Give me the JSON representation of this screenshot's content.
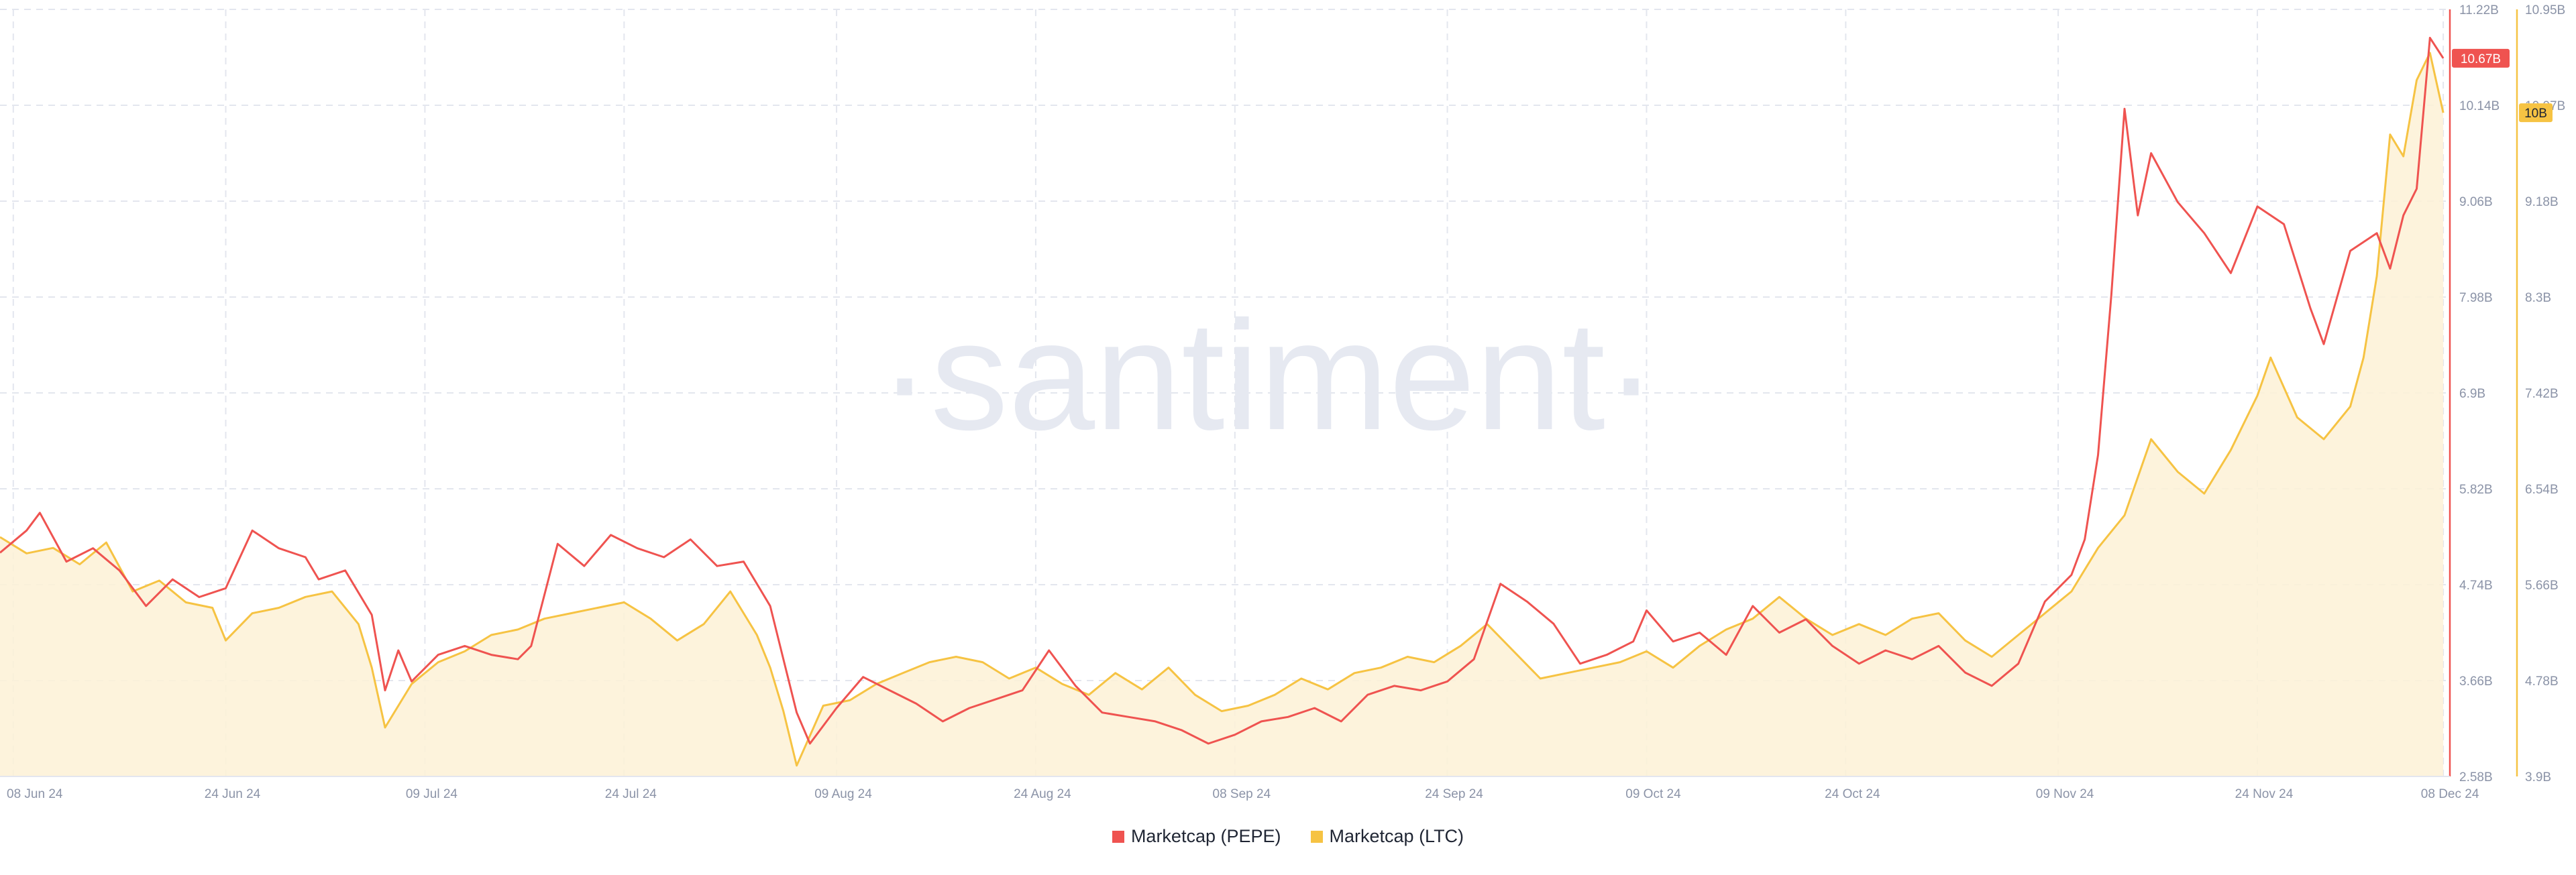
{
  "watermark": "·santiment·",
  "chart_data": {
    "type": "line",
    "x_axis": {
      "range": [
        "07 Jun 24",
        "08 Dec 24"
      ],
      "tick_labels": [
        "08 Jun 24",
        "24 Jun 24",
        "09 Jul 24",
        "24 Jul 24",
        "09 Aug 24",
        "24 Aug 24",
        "08 Sep 24",
        "24 Sep 24",
        "09 Oct 24",
        "24 Oct 24",
        "09 Nov 24",
        "24 Nov 24",
        "08 Dec 24"
      ]
    },
    "y_axis_left": {
      "series": "Marketcap (PEPE)",
      "range": [
        2.58,
        11.22
      ],
      "unit": "B",
      "tick_labels": [
        "11.22B",
        "10.14B",
        "9.06B",
        "7.98B",
        "6.9B",
        "5.82B",
        "4.74B",
        "3.66B",
        "2.58B"
      ],
      "current_value_label": "10.67B",
      "color": "#ef5350"
    },
    "y_axis_right": {
      "series": "Marketcap (LTC)",
      "range": [
        3.9,
        10.95
      ],
      "unit": "B",
      "tick_labels": [
        "10.95B",
        "10.07B",
        "9.18B",
        "8.3B",
        "7.42B",
        "6.54B",
        "5.66B",
        "4.78B",
        "3.9B"
      ],
      "current_value_label": "10B",
      "color": "#f6c343"
    },
    "grid": true,
    "legend_position": "bottom-center",
    "series": [
      {
        "name": "Marketcap (PEPE)",
        "color": "#ef5350",
        "axis": "left",
        "points": [
          [
            "2024-06-07",
            5.1
          ],
          [
            "2024-06-09",
            5.35
          ],
          [
            "2024-06-10",
            5.55
          ],
          [
            "2024-06-12",
            5.0
          ],
          [
            "2024-06-14",
            5.15
          ],
          [
            "2024-06-16",
            4.9
          ],
          [
            "2024-06-18",
            4.5
          ],
          [
            "2024-06-20",
            4.8
          ],
          [
            "2024-06-22",
            4.6
          ],
          [
            "2024-06-24",
            4.7
          ],
          [
            "2024-06-26",
            5.35
          ],
          [
            "2024-06-28",
            5.15
          ],
          [
            "2024-06-30",
            5.05
          ],
          [
            "2024-07-01",
            4.8
          ],
          [
            "2024-07-03",
            4.9
          ],
          [
            "2024-07-05",
            4.4
          ],
          [
            "2024-07-06",
            3.55
          ],
          [
            "2024-07-07",
            4.0
          ],
          [
            "2024-07-08",
            3.65
          ],
          [
            "2024-07-10",
            3.95
          ],
          [
            "2024-07-12",
            4.05
          ],
          [
            "2024-07-14",
            3.95
          ],
          [
            "2024-07-16",
            3.9
          ],
          [
            "2024-07-17",
            4.05
          ],
          [
            "2024-07-19",
            5.2
          ],
          [
            "2024-07-21",
            4.95
          ],
          [
            "2024-07-23",
            5.3
          ],
          [
            "2024-07-25",
            5.15
          ],
          [
            "2024-07-27",
            5.05
          ],
          [
            "2024-07-29",
            5.25
          ],
          [
            "2024-07-31",
            4.95
          ],
          [
            "2024-08-02",
            5.0
          ],
          [
            "2024-08-04",
            4.5
          ],
          [
            "2024-08-05",
            3.9
          ],
          [
            "2024-08-06",
            3.3
          ],
          [
            "2024-08-07",
            2.95
          ],
          [
            "2024-08-09",
            3.35
          ],
          [
            "2024-08-11",
            3.7
          ],
          [
            "2024-08-13",
            3.55
          ],
          [
            "2024-08-15",
            3.4
          ],
          [
            "2024-08-17",
            3.2
          ],
          [
            "2024-08-19",
            3.35
          ],
          [
            "2024-08-21",
            3.45
          ],
          [
            "2024-08-23",
            3.55
          ],
          [
            "2024-08-25",
            4.0
          ],
          [
            "2024-08-27",
            3.6
          ],
          [
            "2024-08-29",
            3.3
          ],
          [
            "2024-08-31",
            3.25
          ],
          [
            "2024-09-02",
            3.2
          ],
          [
            "2024-09-04",
            3.1
          ],
          [
            "2024-09-06",
            2.95
          ],
          [
            "2024-09-08",
            3.05
          ],
          [
            "2024-09-10",
            3.2
          ],
          [
            "2024-09-12",
            3.25
          ],
          [
            "2024-09-14",
            3.35
          ],
          [
            "2024-09-16",
            3.2
          ],
          [
            "2024-09-18",
            3.5
          ],
          [
            "2024-09-20",
            3.6
          ],
          [
            "2024-09-22",
            3.55
          ],
          [
            "2024-09-24",
            3.65
          ],
          [
            "2024-09-26",
            3.9
          ],
          [
            "2024-09-28",
            4.75
          ],
          [
            "2024-09-30",
            4.55
          ],
          [
            "2024-10-02",
            4.3
          ],
          [
            "2024-10-04",
            3.85
          ],
          [
            "2024-10-06",
            3.95
          ],
          [
            "2024-10-08",
            4.1
          ],
          [
            "2024-10-09",
            4.45
          ],
          [
            "2024-10-11",
            4.1
          ],
          [
            "2024-10-13",
            4.2
          ],
          [
            "2024-10-15",
            3.95
          ],
          [
            "2024-10-17",
            4.5
          ],
          [
            "2024-10-19",
            4.2
          ],
          [
            "2024-10-21",
            4.35
          ],
          [
            "2024-10-23",
            4.05
          ],
          [
            "2024-10-25",
            3.85
          ],
          [
            "2024-10-27",
            4.0
          ],
          [
            "2024-10-29",
            3.9
          ],
          [
            "2024-10-31",
            4.05
          ],
          [
            "2024-11-02",
            3.75
          ],
          [
            "2024-11-04",
            3.6
          ],
          [
            "2024-11-06",
            3.85
          ],
          [
            "2024-11-08",
            4.55
          ],
          [
            "2024-11-10",
            4.85
          ],
          [
            "2024-11-11",
            5.25
          ],
          [
            "2024-11-12",
            6.2
          ],
          [
            "2024-11-13",
            8.0
          ],
          [
            "2024-11-14",
            10.1
          ],
          [
            "2024-11-15",
            8.9
          ],
          [
            "2024-11-16",
            9.6
          ],
          [
            "2024-11-18",
            9.05
          ],
          [
            "2024-11-20",
            8.7
          ],
          [
            "2024-11-22",
            8.25
          ],
          [
            "2024-11-24",
            9.0
          ],
          [
            "2024-11-26",
            8.8
          ],
          [
            "2024-11-28",
            7.85
          ],
          [
            "2024-11-29",
            7.45
          ],
          [
            "2024-12-01",
            8.5
          ],
          [
            "2024-12-03",
            8.7
          ],
          [
            "2024-12-04",
            8.3
          ],
          [
            "2024-12-05",
            8.9
          ],
          [
            "2024-12-06",
            9.2
          ],
          [
            "2024-12-07",
            10.9
          ],
          [
            "2024-12-08",
            10.67
          ]
        ]
      },
      {
        "name": "Marketcap (LTC)",
        "color": "#f6c343",
        "axis": "right",
        "points": [
          [
            "2024-06-07",
            6.1
          ],
          [
            "2024-06-09",
            5.95
          ],
          [
            "2024-06-11",
            6.0
          ],
          [
            "2024-06-13",
            5.85
          ],
          [
            "2024-06-15",
            6.05
          ],
          [
            "2024-06-17",
            5.6
          ],
          [
            "2024-06-19",
            5.7
          ],
          [
            "2024-06-21",
            5.5
          ],
          [
            "2024-06-23",
            5.45
          ],
          [
            "2024-06-24",
            5.15
          ],
          [
            "2024-06-26",
            5.4
          ],
          [
            "2024-06-28",
            5.45
          ],
          [
            "2024-06-30",
            5.55
          ],
          [
            "2024-07-02",
            5.6
          ],
          [
            "2024-07-04",
            5.3
          ],
          [
            "2024-07-05",
            4.9
          ],
          [
            "2024-07-06",
            4.35
          ],
          [
            "2024-07-08",
            4.75
          ],
          [
            "2024-07-10",
            4.95
          ],
          [
            "2024-07-12",
            5.05
          ],
          [
            "2024-07-14",
            5.2
          ],
          [
            "2024-07-16",
            5.25
          ],
          [
            "2024-07-18",
            5.35
          ],
          [
            "2024-07-20",
            5.4
          ],
          [
            "2024-07-22",
            5.45
          ],
          [
            "2024-07-24",
            5.5
          ],
          [
            "2024-07-26",
            5.35
          ],
          [
            "2024-07-28",
            5.15
          ],
          [
            "2024-07-30",
            5.3
          ],
          [
            "2024-08-01",
            5.6
          ],
          [
            "2024-08-03",
            5.2
          ],
          [
            "2024-08-04",
            4.9
          ],
          [
            "2024-08-05",
            4.5
          ],
          [
            "2024-08-06",
            4.0
          ],
          [
            "2024-08-08",
            4.55
          ],
          [
            "2024-08-10",
            4.6
          ],
          [
            "2024-08-12",
            4.75
          ],
          [
            "2024-08-14",
            4.85
          ],
          [
            "2024-08-16",
            4.95
          ],
          [
            "2024-08-18",
            5.0
          ],
          [
            "2024-08-20",
            4.95
          ],
          [
            "2024-08-22",
            4.8
          ],
          [
            "2024-08-24",
            4.9
          ],
          [
            "2024-08-26",
            4.75
          ],
          [
            "2024-08-28",
            4.65
          ],
          [
            "2024-08-30",
            4.85
          ],
          [
            "2024-09-01",
            4.7
          ],
          [
            "2024-09-03",
            4.9
          ],
          [
            "2024-09-05",
            4.65
          ],
          [
            "2024-09-07",
            4.5
          ],
          [
            "2024-09-09",
            4.55
          ],
          [
            "2024-09-11",
            4.65
          ],
          [
            "2024-09-13",
            4.8
          ],
          [
            "2024-09-15",
            4.7
          ],
          [
            "2024-09-17",
            4.85
          ],
          [
            "2024-09-19",
            4.9
          ],
          [
            "2024-09-21",
            5.0
          ],
          [
            "2024-09-23",
            4.95
          ],
          [
            "2024-09-25",
            5.1
          ],
          [
            "2024-09-27",
            5.3
          ],
          [
            "2024-09-29",
            5.05
          ],
          [
            "2024-10-01",
            4.8
          ],
          [
            "2024-10-03",
            4.85
          ],
          [
            "2024-10-05",
            4.9
          ],
          [
            "2024-10-07",
            4.95
          ],
          [
            "2024-10-09",
            5.05
          ],
          [
            "2024-10-11",
            4.9
          ],
          [
            "2024-10-13",
            5.1
          ],
          [
            "2024-10-15",
            5.25
          ],
          [
            "2024-10-17",
            5.35
          ],
          [
            "2024-10-19",
            5.55
          ],
          [
            "2024-10-21",
            5.35
          ],
          [
            "2024-10-23",
            5.2
          ],
          [
            "2024-10-25",
            5.3
          ],
          [
            "2024-10-27",
            5.2
          ],
          [
            "2024-10-29",
            5.35
          ],
          [
            "2024-10-31",
            5.4
          ],
          [
            "2024-11-02",
            5.15
          ],
          [
            "2024-11-04",
            5.0
          ],
          [
            "2024-11-06",
            5.2
          ],
          [
            "2024-11-08",
            5.4
          ],
          [
            "2024-11-10",
            5.6
          ],
          [
            "2024-11-12",
            6.0
          ],
          [
            "2024-11-14",
            6.3
          ],
          [
            "2024-11-16",
            7.0
          ],
          [
            "2024-11-18",
            6.7
          ],
          [
            "2024-11-20",
            6.5
          ],
          [
            "2024-11-22",
            6.9
          ],
          [
            "2024-11-24",
            7.4
          ],
          [
            "2024-11-25",
            7.75
          ],
          [
            "2024-11-27",
            7.2
          ],
          [
            "2024-11-29",
            7.0
          ],
          [
            "2024-12-01",
            7.3
          ],
          [
            "2024-12-02",
            7.75
          ],
          [
            "2024-12-03",
            8.5
          ],
          [
            "2024-12-04",
            9.8
          ],
          [
            "2024-12-05",
            9.6
          ],
          [
            "2024-12-06",
            10.3
          ],
          [
            "2024-12-07",
            10.55
          ],
          [
            "2024-12-08",
            10.0
          ]
        ]
      }
    ]
  }
}
